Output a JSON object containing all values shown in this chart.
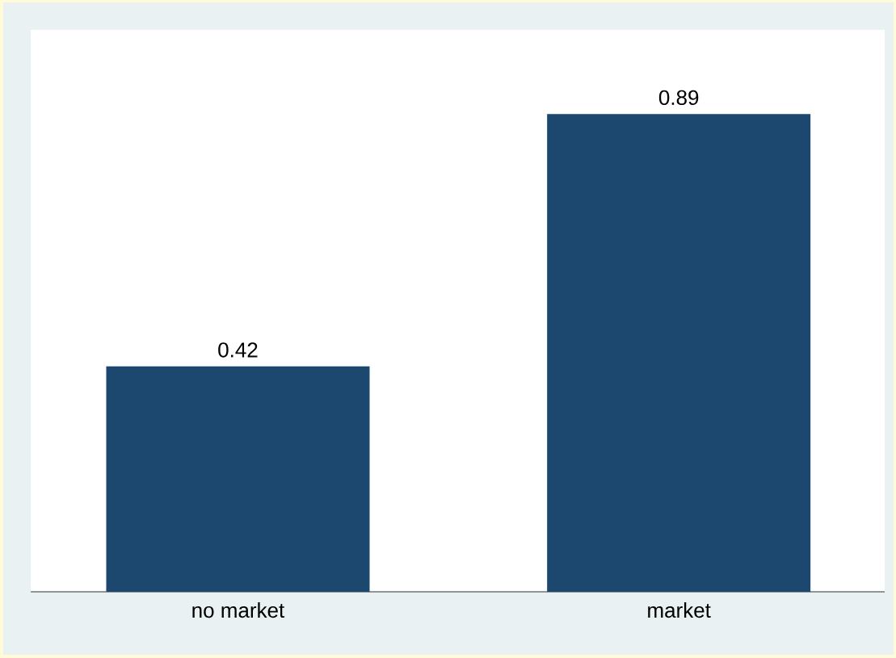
{
  "chart_data": {
    "type": "bar",
    "categories": [
      "no market",
      "market"
    ],
    "values": [
      0.42,
      0.89
    ],
    "color": "#1c4870",
    "data_labels": true
  }
}
